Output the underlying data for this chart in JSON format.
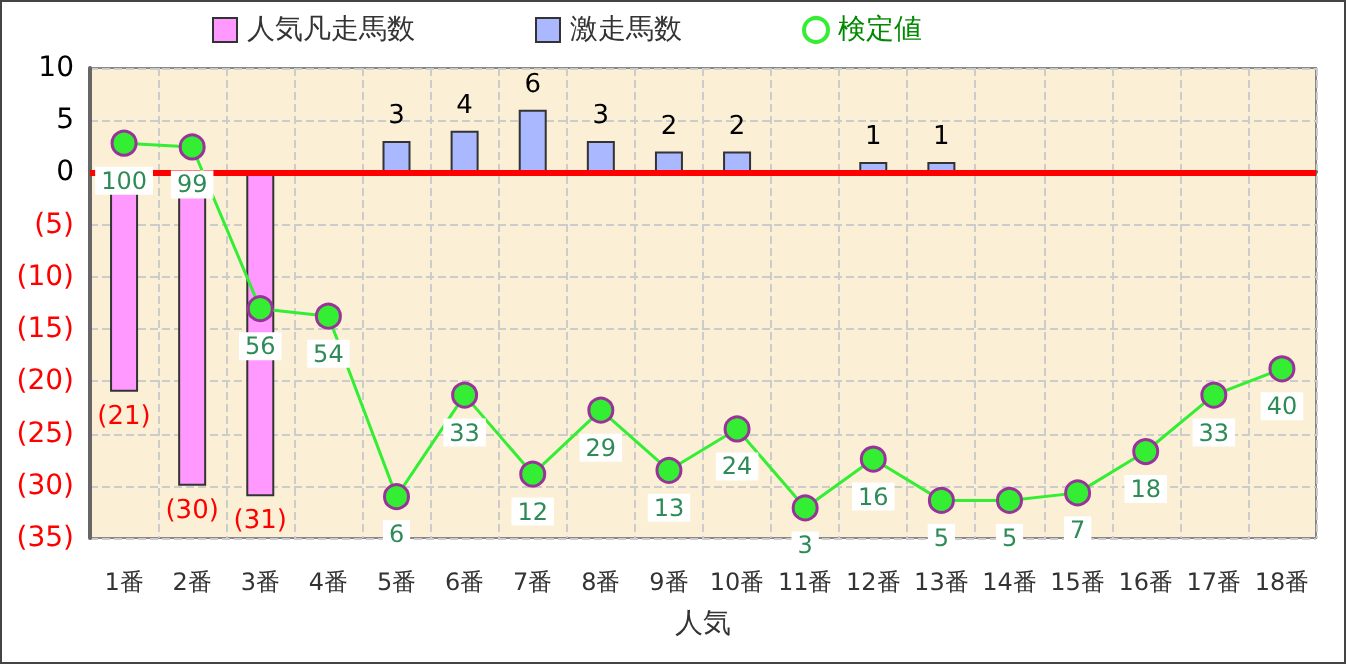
{
  "chart_data": {
    "type": "bar",
    "xlabel": "人気",
    "categories": [
      "1番",
      "2番",
      "3番",
      "4番",
      "5番",
      "6番",
      "7番",
      "8番",
      "9番",
      "10番",
      "11番",
      "12番",
      "13番",
      "14番",
      "15番",
      "16番",
      "17番",
      "18番"
    ],
    "series": [
      {
        "name": "人気凡走馬数",
        "color": "#ff99ff",
        "values": [
          -21,
          -30,
          -31,
          null,
          null,
          null,
          null,
          null,
          null,
          null,
          null,
          null,
          null,
          null,
          null,
          null,
          null,
          null
        ],
        "value_labels": [
          "(21)",
          "(30)",
          "(31)",
          null,
          null,
          null,
          null,
          null,
          null,
          null,
          null,
          null,
          null,
          null,
          null,
          null,
          null,
          null
        ]
      },
      {
        "name": "激走馬数",
        "color": "#aab8ff",
        "values": [
          null,
          null,
          null,
          null,
          3,
          4,
          6,
          3,
          2,
          2,
          null,
          1,
          1,
          null,
          null,
          null,
          null,
          null
        ],
        "value_labels": [
          null,
          null,
          null,
          null,
          "3",
          "4",
          "6",
          "3",
          "2",
          "2",
          null,
          "1",
          "1",
          null,
          null,
          null,
          null,
          null
        ]
      },
      {
        "name": "検定値",
        "type": "line",
        "axis": "y2",
        "color": "#33ee33",
        "values": [
          100,
          99,
          56,
          54,
          6,
          33,
          12,
          29,
          13,
          24,
          3,
          16,
          5,
          5,
          7,
          18,
          33,
          40
        ],
        "value_labels": [
          "100",
          "99",
          "56",
          "54",
          "6",
          "33",
          "12",
          "29",
          "13",
          "24",
          "3",
          "16",
          "5",
          "5",
          "7",
          "18",
          "33",
          "40"
        ]
      }
    ],
    "ylim": [
      -35,
      10
    ],
    "yticks": [
      {
        "value": -35,
        "label": "(35)"
      },
      {
        "value": -30,
        "label": "(30)"
      },
      {
        "value": -25,
        "label": "(25)"
      },
      {
        "value": -20,
        "label": "(20)"
      },
      {
        "value": -15,
        "label": "(15)"
      },
      {
        "value": -10,
        "label": "(10)"
      },
      {
        "value": -5,
        "label": "(5)"
      },
      0,
      5,
      10
    ],
    "y2lim": [
      -5,
      120
    ],
    "ref_lines": [
      {
        "axis": "y",
        "value": 0,
        "color": "#ff0000"
      }
    ],
    "grid": true,
    "legend": "top",
    "marker": "circle"
  }
}
